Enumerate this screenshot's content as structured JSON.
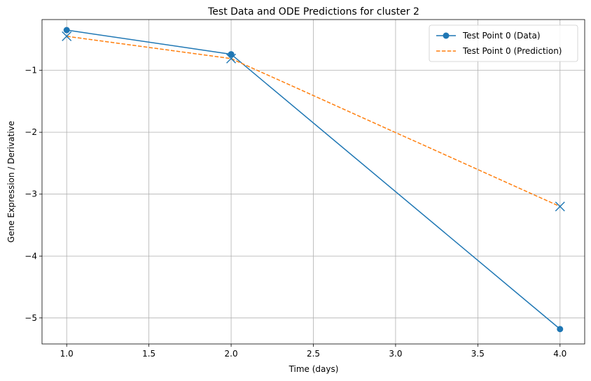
{
  "chart_data": {
    "type": "line",
    "title": "Test Data and ODE Predictions for cluster 2",
    "xlabel": "Time (days)",
    "ylabel": "Gene Expression / Derivative",
    "xlim": [
      0.85,
      4.15
    ],
    "ylim": [
      -5.42,
      -0.18
    ],
    "xticks": [
      1.0,
      1.5,
      2.0,
      2.5,
      3.0,
      3.5,
      4.0
    ],
    "xtick_labels": [
      "1.0",
      "1.5",
      "2.0",
      "2.5",
      "3.0",
      "3.5",
      "4.0"
    ],
    "yticks": [
      -1,
      -2,
      -3,
      -4,
      -5
    ],
    "ytick_labels": [
      "−1",
      "−2",
      "−3",
      "−4",
      "−5"
    ],
    "grid": true,
    "legend_position": "top-right",
    "series": [
      {
        "name": "Test Point 0 (Data)",
        "style": "solid",
        "marker": "circle",
        "color": "#1f77b4",
        "x": [
          1.0,
          2.0,
          4.0
        ],
        "y": [
          -0.35,
          -0.74,
          -5.18
        ]
      },
      {
        "name": "Test Point 0 (Prediction)",
        "style": "dashed",
        "marker": "none",
        "color": "#ff7f0e",
        "x": [
          1.0,
          2.0,
          4.0
        ],
        "y": [
          -0.45,
          -0.81,
          -3.2
        ]
      }
    ],
    "annotations": {
      "x_markers": {
        "marker": "x",
        "color": "#1f77b4",
        "x": [
          1.0,
          2.0,
          4.0
        ],
        "y": [
          -0.45,
          -0.81,
          -3.2
        ]
      }
    }
  }
}
